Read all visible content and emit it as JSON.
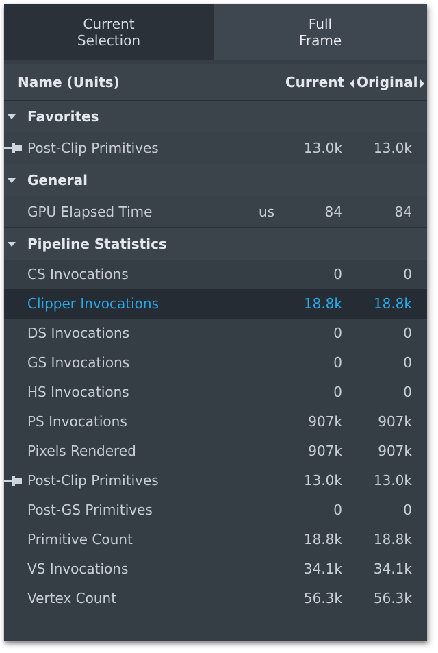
{
  "tabs": [
    {
      "label": "Current\nSelection"
    },
    {
      "label": "Full\nFrame"
    }
  ],
  "header": {
    "name_col": "Name (Units)",
    "current_col": "Current",
    "original_col": "Original"
  },
  "sections": {
    "favorites": {
      "title": "Favorites",
      "rows": [
        {
          "name": "Post-Clip Primitives",
          "unit": "",
          "current": "13.0k",
          "original": "13.0k",
          "pinned": true
        }
      ]
    },
    "general": {
      "title": "General",
      "rows": [
        {
          "name": "GPU Elapsed Time",
          "unit": "us",
          "current": "84",
          "original": "84"
        }
      ]
    },
    "pipeline": {
      "title": "Pipeline Statistics",
      "rows": [
        {
          "name": "CS Invocations",
          "current": "0",
          "original": "0"
        },
        {
          "name": "Clipper Invocations",
          "current": "18.8k",
          "original": "18.8k",
          "selected": true
        },
        {
          "name": "DS Invocations",
          "current": "0",
          "original": "0"
        },
        {
          "name": "GS Invocations",
          "current": "0",
          "original": "0"
        },
        {
          "name": "HS Invocations",
          "current": "0",
          "original": "0"
        },
        {
          "name": "PS Invocations",
          "current": "907k",
          "original": "907k"
        },
        {
          "name": "Pixels Rendered",
          "current": "907k",
          "original": "907k"
        },
        {
          "name": "Post-Clip Primitives",
          "current": "13.0k",
          "original": "13.0k",
          "pinned": true
        },
        {
          "name": "Post-GS Primitives",
          "current": "0",
          "original": "0"
        },
        {
          "name": "Primitive Count",
          "current": "18.8k",
          "original": "18.8k"
        },
        {
          "name": "VS Invocations",
          "current": "34.1k",
          "original": "34.1k"
        },
        {
          "name": "Vertex Count",
          "current": "56.3k",
          "original": "56.3k"
        }
      ]
    }
  },
  "colors": {
    "panel_bg": "#353d45",
    "selected_text": "#2aa7e8",
    "selected_bg": "#262c33"
  }
}
